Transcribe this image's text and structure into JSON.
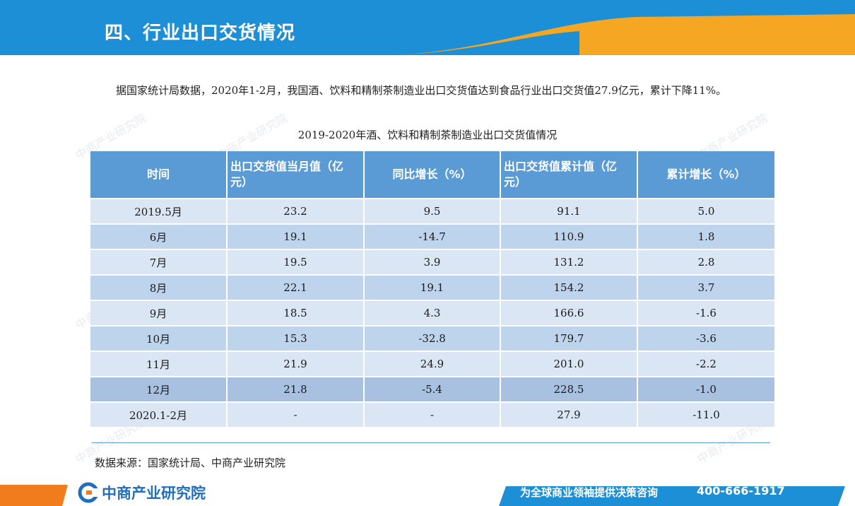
{
  "header": {
    "title": "四、行业出口交货情况"
  },
  "intro": "据国家统计局数据，2020年1-2月，我国酒、饮料和精制茶制造业出口交货值达到食品行业出口交货值27.9亿元，累计下降11%。",
  "table": {
    "caption": "2019-2020年酒、饮料和精制茶制造业出口交货值情况",
    "columns": [
      "时间",
      "出口交货值当月值（亿元）",
      "同比增长（%）",
      "出口交货值累计值（亿元）",
      "累计增长（%）"
    ],
    "rows": [
      [
        "2019.5月",
        "23.2",
        "9.5",
        "91.1",
        "5.0"
      ],
      [
        "6月",
        "19.1",
        "-14.7",
        "110.9",
        "1.8"
      ],
      [
        "7月",
        "19.5",
        "3.9",
        "131.2",
        "2.8"
      ],
      [
        "8月",
        "22.1",
        "19.1",
        "154.2",
        "3.7"
      ],
      [
        "9月",
        "18.5",
        "4.3",
        "166.6",
        "-1.6"
      ],
      [
        "10月",
        "15.3",
        "-32.8",
        "179.7",
        "-3.6"
      ],
      [
        "11月",
        "21.9",
        "24.9",
        "201.0",
        "-2.2"
      ],
      [
        "12月",
        "21.8",
        "-5.4",
        "228.5",
        "-1.0"
      ],
      [
        "2020.1-2月",
        "-",
        "-",
        "27.9",
        "-11.0"
      ]
    ]
  },
  "source": "数据来源：国家统计局、中商产业研究院",
  "footer": {
    "logo_text": "中商产业研究院",
    "slogan": "为全球商业领袖提供决策咨询",
    "phone": "400-666-1917"
  },
  "colors": {
    "header_blue": "#1c8fd6",
    "accent_orange": "#f5a623",
    "table_header": "#5b9bd5"
  }
}
